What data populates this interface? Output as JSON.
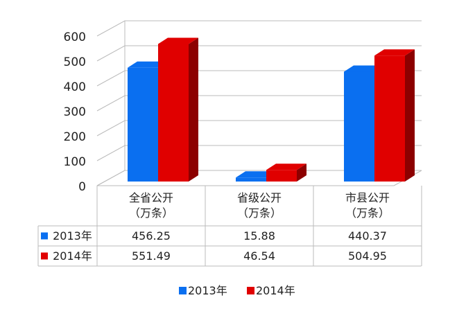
{
  "chart_data": {
    "type": "bar3d",
    "categories": [
      "全省公开\n（万条）",
      "省级公开\n（万条）",
      "市县公开\n（万条）"
    ],
    "series": [
      {
        "name": "2013年",
        "color": "#0a6ff0",
        "side": "#0048a8",
        "values": [
          456.25,
          15.88,
          440.37
        ]
      },
      {
        "name": "2014年",
        "color": "#e00000",
        "side": "#8c0000",
        "values": [
          551.49,
          46.54,
          504.95
        ]
      }
    ],
    "ylim": [
      0,
      600
    ],
    "yticks": [
      0,
      100,
      200,
      300,
      400,
      500,
      600
    ],
    "grid": true
  }
}
